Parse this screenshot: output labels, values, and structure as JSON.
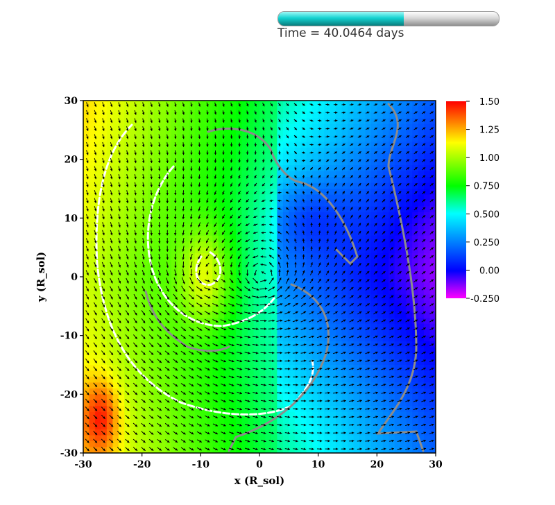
{
  "header": {
    "time_label": "Time = 40.0464 days",
    "progress_fraction": 0.57
  },
  "chart_data": {
    "type": "heatmap",
    "title": "",
    "xlabel": "x (R_sol)",
    "ylabel": "y (R_sol)",
    "xlim": [
      -30,
      30
    ],
    "ylim": [
      -30,
      30
    ],
    "x_ticks": [
      "-30",
      "-20",
      "-10",
      "0",
      "10",
      "20",
      "30"
    ],
    "y_ticks": [
      "30",
      "20",
      "10",
      "0",
      "-10",
      "-20",
      "-30"
    ],
    "overlay": "velocity vector field (arrows) with white and gray contour lines",
    "colorbar": {
      "min": -0.25,
      "max": 1.5,
      "tick_labels": [
        "1.50",
        "1.25",
        "1.00",
        "0.750",
        "0.500",
        "0.250",
        "0.00",
        "-0.250"
      ],
      "tick_values": [
        1.5,
        1.25,
        1.0,
        0.75,
        0.5,
        0.25,
        0.0,
        -0.25
      ],
      "colors": [
        "#ff00ff",
        "#0000ff",
        "#00ffff",
        "#00ff00",
        "#ffff00",
        "#ff0000"
      ]
    },
    "vortices": [
      {
        "x": 0.5,
        "y": 0,
        "sense": "counterclockwise"
      },
      {
        "x": -10,
        "y": 0,
        "sense": "counterclockwise"
      }
    ],
    "colors": {
      "high": "#f5a623",
      "mid": "#3bdc4a",
      "low": "#1a3cf0",
      "contour_white": "#ffffff",
      "contour_gray": "#8c8c8c"
    }
  }
}
